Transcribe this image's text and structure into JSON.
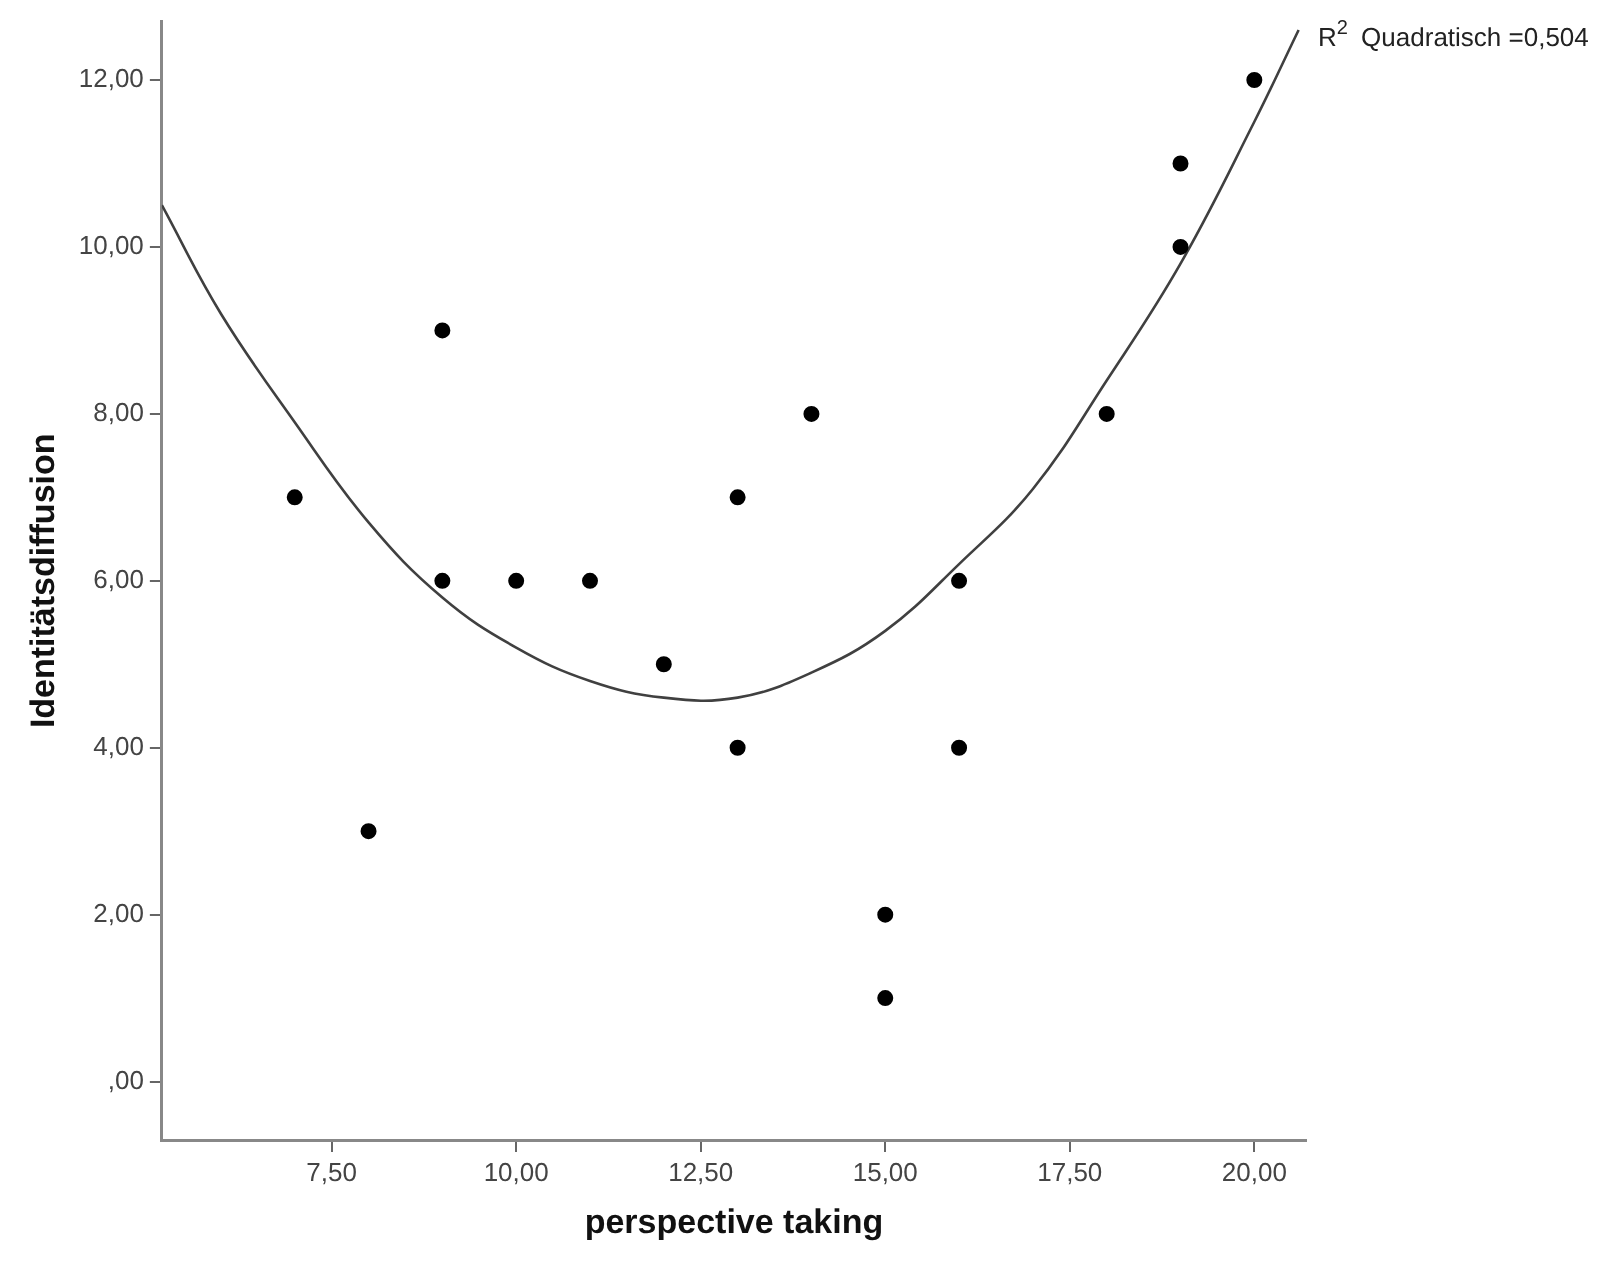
{
  "chart_data": {
    "type": "scatter",
    "xlabel": "perspective taking",
    "ylabel": "Identitätsdiffusion",
    "xlim": [
      5.2,
      20.7
    ],
    "ylim": [
      -0.7,
      12.7
    ],
    "xticks": [
      {
        "value": 7.5,
        "label": "7,50"
      },
      {
        "value": 10,
        "label": "10,00"
      },
      {
        "value": 12.5,
        "label": "12,50"
      },
      {
        "value": 15,
        "label": "15,00"
      },
      {
        "value": 17.5,
        "label": "17,50"
      },
      {
        "value": 20,
        "label": "20,00"
      }
    ],
    "yticks": [
      {
        "value": 0,
        "label": ",00"
      },
      {
        "value": 2,
        "label": "2,00"
      },
      {
        "value": 4,
        "label": "4,00"
      },
      {
        "value": 6,
        "label": "6,00"
      },
      {
        "value": 8,
        "label": "8,00"
      },
      {
        "value": 10,
        "label": "10,00"
      },
      {
        "value": 12,
        "label": "12,00"
      }
    ],
    "grid": false,
    "legend": false,
    "marker": "circle",
    "series": [
      {
        "color": "#000000",
        "x": [
          7,
          8,
          9,
          9,
          10,
          11,
          12,
          13,
          13,
          14,
          15,
          15,
          16,
          16,
          18,
          19,
          19,
          20
        ],
        "values": [
          7,
          3,
          9,
          6,
          6,
          6,
          5,
          7,
          4,
          8,
          2,
          1,
          6,
          4,
          8,
          11,
          10,
          12
        ]
      },
      {
        "type": "line",
        "color": "#404040",
        "marker": "none",
        "line_style": "solid",
        "x": [
          5.2,
          6,
          7,
          8,
          9,
          10,
          11,
          12,
          13,
          14,
          15,
          16,
          17,
          18,
          19,
          20,
          20.6
        ],
        "values": [
          10.5,
          9.2,
          7.9,
          6.7,
          5.8,
          5.2,
          4.8,
          4.6,
          4.6,
          4.9,
          5.4,
          6.2,
          7.1,
          8.4,
          9.8,
          11.5,
          12.6
        ]
      }
    ],
    "annotations": [
      "R$^{2}$ Quadratisch =0,504"
    ]
  }
}
